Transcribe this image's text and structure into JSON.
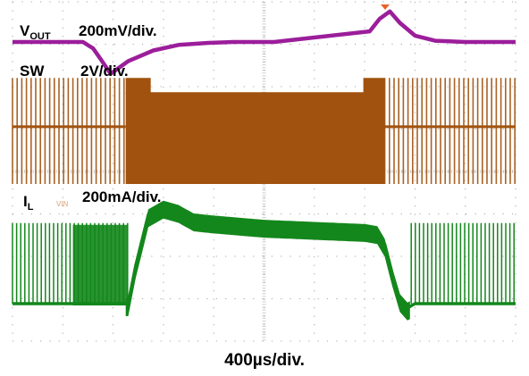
{
  "chart_data": {
    "type": "line",
    "title": "",
    "grid": true,
    "grid_divisions": {
      "horizontal": 10,
      "vertical": 8
    },
    "colors": {
      "vout": "#9b1e9b",
      "sw": "#a0520e",
      "il": "#13871b",
      "grid": "#a7a7a7",
      "trigger_marker": "#e8622a"
    },
    "timebase": "400µs/div.",
    "series": [
      {
        "name": "VOUT",
        "label_main": "V",
        "label_sub": "OUT",
        "scale": "200mV/div.",
        "x_div": [
          0,
          1.4,
          1.6,
          1.75,
          1.95,
          2.3,
          2.8,
          3.3,
          3.9,
          4.4,
          4.8,
          5.2,
          7.1,
          7.3,
          7.5,
          7.7,
          8.0,
          8.4,
          9.0,
          10.0
        ],
        "y_div": [
          0,
          0,
          -0.15,
          -0.4,
          -0.75,
          -0.45,
          -0.2,
          -0.07,
          -0.02,
          0,
          0,
          0,
          0.25,
          0.55,
          0.72,
          0.45,
          0.15,
          0.03,
          0,
          0
        ]
      },
      {
        "name": "SW",
        "label_main": "SW",
        "scale": "2V/div.",
        "segments": [
          {
            "mode": "switching",
            "x_start_div": 0,
            "x_end_div": 2.25
          },
          {
            "mode": "continuous",
            "x_start_div": 2.25,
            "x_end_div": 7.4
          },
          {
            "mode": "switching",
            "x_start_div": 7.4,
            "x_end_div": 10
          }
        ],
        "high_level_div": 1.7,
        "low_level_div": -0.8
      },
      {
        "name": "IL",
        "label_main": "I",
        "label_sub": "L",
        "scale": "200mA/div.",
        "extra_label": "VIN",
        "x_div": [
          0,
          2.3,
          2.45,
          2.7,
          3.0,
          3.3,
          3.6,
          4.0,
          4.5,
          5.0,
          6.0,
          7.0,
          7.25,
          7.4,
          7.55,
          7.7,
          7.85,
          8.0,
          10.0
        ],
        "y_div": [
          0,
          0,
          0.9,
          2.1,
          2.3,
          2.2,
          2.0,
          1.95,
          1.9,
          1.85,
          1.8,
          1.75,
          1.7,
          1.4,
          0.7,
          0.1,
          -0.1,
          0,
          0
        ]
      }
    ]
  }
}
